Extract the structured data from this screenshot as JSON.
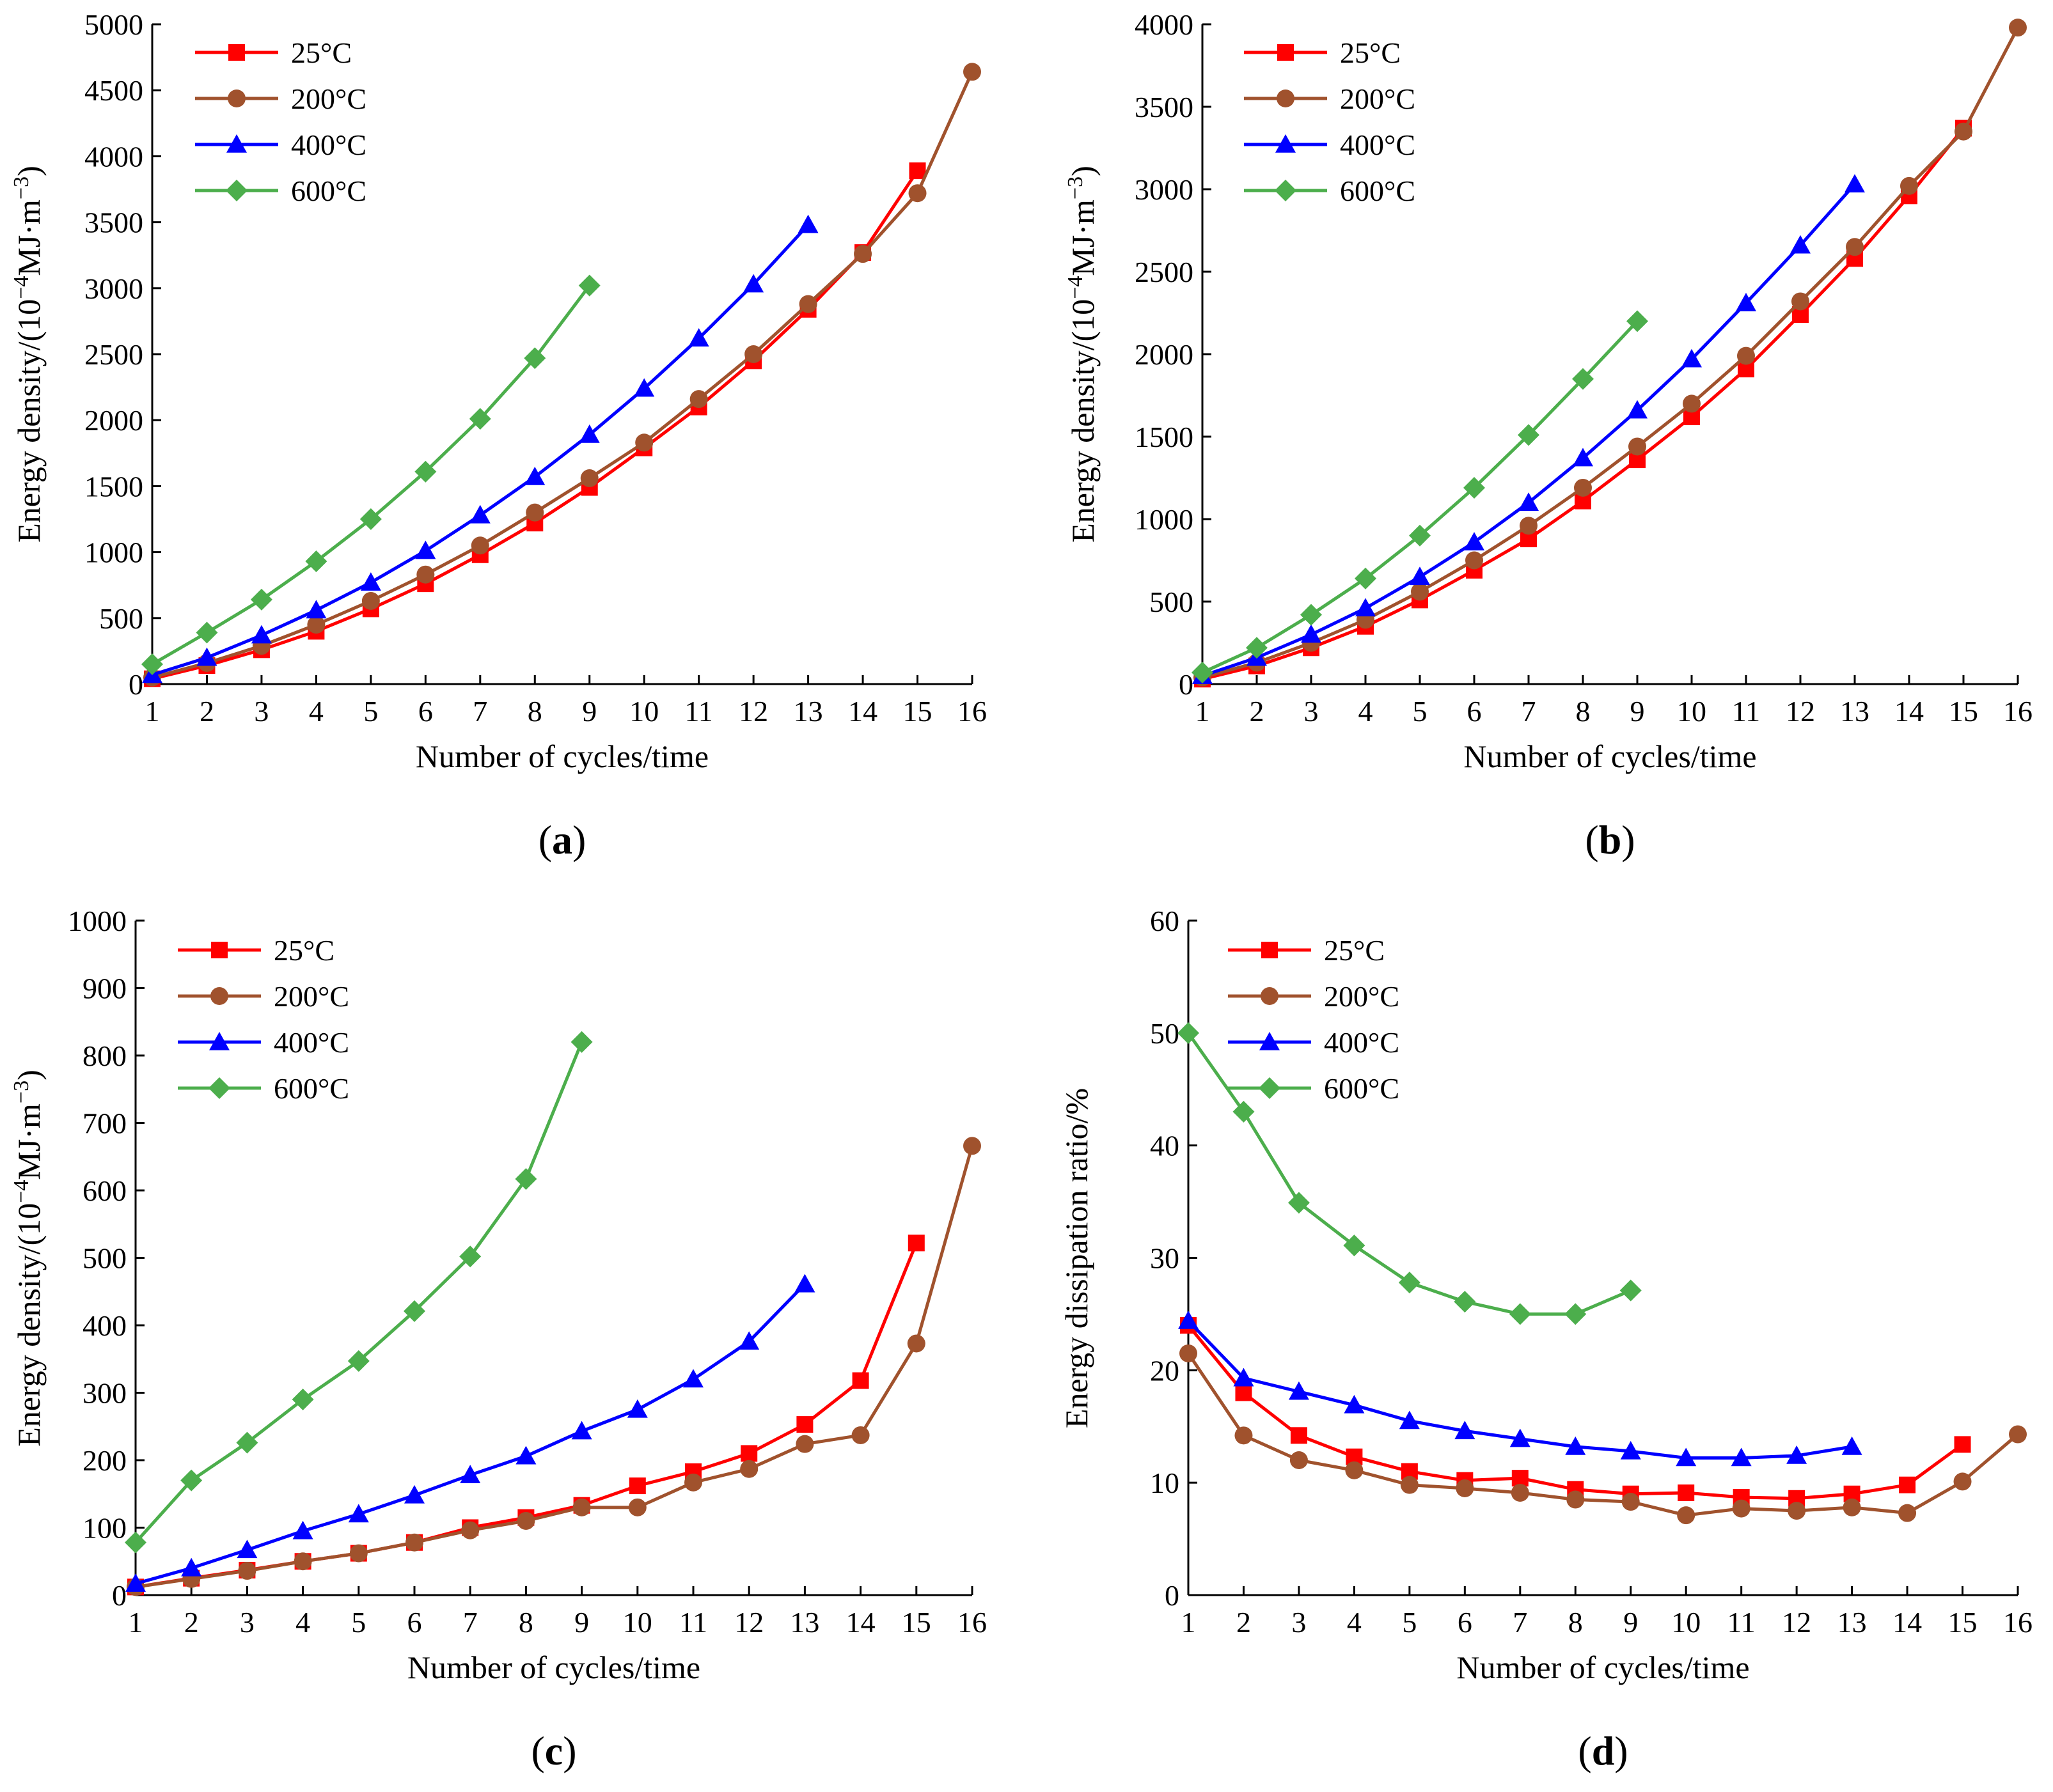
{
  "chart_data": [
    {
      "id": "a",
      "type": "line",
      "panel_label": "a",
      "xlabel": "Number of cycles/time",
      "ylabel_main": "Energy density/(10",
      "ylabel_exp1": "−4",
      "ylabel_mid": "MJ·m",
      "ylabel_exp2": "−3",
      "ylabel_end": ")",
      "xlim": [
        1,
        16
      ],
      "ylim": [
        0,
        5000
      ],
      "x_ticks": [
        1,
        2,
        3,
        4,
        5,
        6,
        7,
        8,
        9,
        10,
        11,
        12,
        13,
        14,
        15,
        16
      ],
      "y_ticks": [
        0,
        500,
        1000,
        1500,
        2000,
        2500,
        3000,
        3500,
        4000,
        4500,
        5000
      ],
      "legend_position": "top-left",
      "series": [
        {
          "name": "25°C",
          "color": "#ff0000",
          "marker": "square",
          "x": [
            1,
            2,
            3,
            4,
            5,
            6,
            7,
            8,
            9,
            10,
            11,
            12,
            13,
            14,
            15
          ],
          "values": [
            40,
            140,
            260,
            400,
            570,
            760,
            980,
            1220,
            1490,
            1790,
            2100,
            2450,
            2840,
            3270,
            3890
          ]
        },
        {
          "name": "200°C",
          "color": "#a0522d",
          "marker": "circle",
          "x": [
            1,
            2,
            3,
            4,
            5,
            6,
            7,
            8,
            9,
            10,
            11,
            12,
            13,
            14,
            15,
            16
          ],
          "values": [
            50,
            160,
            290,
            450,
            630,
            830,
            1050,
            1300,
            1560,
            1830,
            2160,
            2500,
            2880,
            3260,
            3720,
            4640
          ]
        },
        {
          "name": "400°C",
          "color": "#0000ff",
          "marker": "triangle",
          "x": [
            1,
            2,
            3,
            4,
            5,
            6,
            7,
            8,
            9,
            10,
            11,
            12,
            13
          ],
          "values": [
            70,
            200,
            370,
            560,
            770,
            1010,
            1280,
            1570,
            1890,
            2240,
            2620,
            3030,
            3480
          ]
        },
        {
          "name": "600°C",
          "color": "#4cae4c",
          "marker": "diamond",
          "x": [
            1,
            2,
            3,
            4,
            5,
            6,
            7,
            8,
            9
          ],
          "values": [
            150,
            390,
            640,
            930,
            1250,
            1610,
            2010,
            2470,
            3020
          ]
        }
      ]
    },
    {
      "id": "b",
      "type": "line",
      "panel_label": "b",
      "xlabel": "Number of cycles/time",
      "ylabel_main": "Energy density/(10",
      "ylabel_exp1": "−4",
      "ylabel_mid": "MJ·m",
      "ylabel_exp2": "−3",
      "ylabel_end": ")",
      "xlim": [
        1,
        16
      ],
      "ylim": [
        0,
        4000
      ],
      "x_ticks": [
        1,
        2,
        3,
        4,
        5,
        6,
        7,
        8,
        9,
        10,
        11,
        12,
        13,
        14,
        15,
        16
      ],
      "y_ticks": [
        0,
        500,
        1000,
        1500,
        2000,
        2500,
        3000,
        3500,
        4000
      ],
      "legend_position": "top-left",
      "series": [
        {
          "name": "25°C",
          "color": "#ff0000",
          "marker": "square",
          "x": [
            1,
            2,
            3,
            4,
            5,
            6,
            7,
            8,
            9,
            10,
            11,
            12,
            13,
            14,
            15
          ],
          "values": [
            30,
            110,
            220,
            350,
            510,
            690,
            880,
            1110,
            1360,
            1620,
            1910,
            2240,
            2580,
            2960,
            3370
          ]
        },
        {
          "name": "200°C",
          "color": "#a0522d",
          "marker": "circle",
          "x": [
            1,
            2,
            3,
            4,
            5,
            6,
            7,
            8,
            9,
            10,
            11,
            12,
            13,
            14,
            15,
            16
          ],
          "values": [
            40,
            130,
            250,
            390,
            560,
            750,
            960,
            1190,
            1440,
            1700,
            1990,
            2320,
            2650,
            3020,
            3350,
            3980
          ]
        },
        {
          "name": "400°C",
          "color": "#0000ff",
          "marker": "triangle",
          "x": [
            1,
            2,
            3,
            4,
            5,
            6,
            7,
            8,
            9,
            10,
            11,
            12,
            13
          ],
          "values": [
            50,
            160,
            300,
            460,
            650,
            860,
            1100,
            1370,
            1660,
            1970,
            2310,
            2660,
            3030
          ]
        },
        {
          "name": "600°C",
          "color": "#4cae4c",
          "marker": "diamond",
          "x": [
            1,
            2,
            3,
            4,
            5,
            6,
            7,
            8,
            9
          ],
          "values": [
            70,
            220,
            420,
            640,
            900,
            1190,
            1510,
            1850,
            2200
          ]
        }
      ]
    },
    {
      "id": "c",
      "type": "line",
      "panel_label": "c",
      "xlabel": "Number of cycles/time",
      "ylabel_main": "Energy density/(10",
      "ylabel_exp1": "−4",
      "ylabel_mid": "MJ·m",
      "ylabel_exp2": "−3",
      "ylabel_end": ")",
      "xlim": [
        1,
        16
      ],
      "ylim": [
        0,
        1000
      ],
      "x_ticks": [
        1,
        2,
        3,
        4,
        5,
        6,
        7,
        8,
        9,
        10,
        11,
        12,
        13,
        14,
        15,
        16
      ],
      "y_ticks": [
        0,
        100,
        200,
        300,
        400,
        500,
        600,
        700,
        800,
        900,
        1000
      ],
      "legend_position": "top-left",
      "series": [
        {
          "name": "25°C",
          "color": "#ff0000",
          "marker": "square",
          "x": [
            1,
            2,
            3,
            4,
            5,
            6,
            7,
            8,
            9,
            10,
            11,
            12,
            13,
            14,
            15
          ],
          "values": [
            12,
            25,
            37,
            50,
            62,
            78,
            100,
            115,
            133,
            162,
            183,
            210,
            253,
            318,
            522
          ]
        },
        {
          "name": "200°C",
          "color": "#a0522d",
          "marker": "circle",
          "x": [
            1,
            2,
            3,
            4,
            5,
            6,
            7,
            8,
            9,
            10,
            11,
            12,
            13,
            14,
            15,
            16
          ],
          "values": [
            12,
            24,
            36,
            50,
            62,
            78,
            96,
            110,
            130,
            130,
            167,
            187,
            224,
            237,
            373,
            666
          ]
        },
        {
          "name": "400°C",
          "color": "#0000ff",
          "marker": "triangle",
          "x": [
            1,
            2,
            3,
            4,
            5,
            6,
            7,
            8,
            9,
            10,
            11,
            12,
            13
          ],
          "values": [
            17,
            40,
            67,
            95,
            120,
            148,
            178,
            206,
            243,
            275,
            320,
            376,
            461
          ]
        },
        {
          "name": "600°C",
          "color": "#4cae4c",
          "marker": "diamond",
          "x": [
            1,
            2,
            3,
            4,
            5,
            6,
            7,
            8,
            9
          ],
          "values": [
            78,
            170,
            226,
            290,
            347,
            421,
            502,
            617,
            820
          ]
        }
      ]
    },
    {
      "id": "d",
      "type": "line",
      "panel_label": "d",
      "xlabel": "Number of cycles/time",
      "ylabel_main": "Energy dissipation ratio/%",
      "xlim": [
        1,
        16
      ],
      "ylim": [
        0,
        60
      ],
      "x_ticks": [
        1,
        2,
        3,
        4,
        5,
        6,
        7,
        8,
        9,
        10,
        11,
        12,
        13,
        14,
        15,
        16
      ],
      "y_ticks": [
        0,
        10,
        20,
        30,
        40,
        50,
        60
      ],
      "legend_position": "top-left",
      "series": [
        {
          "name": "25°C",
          "color": "#ff0000",
          "marker": "square",
          "x": [
            1,
            2,
            3,
            4,
            5,
            6,
            7,
            8,
            9,
            10,
            11,
            12,
            13,
            14,
            15
          ],
          "values": [
            24,
            18,
            14.2,
            12.3,
            11,
            10.2,
            10.4,
            9.4,
            9,
            9.1,
            8.7,
            8.6,
            9,
            9.8,
            13.4
          ]
        },
        {
          "name": "200°C",
          "color": "#a0522d",
          "marker": "circle",
          "x": [
            1,
            2,
            3,
            4,
            5,
            6,
            7,
            8,
            9,
            10,
            11,
            12,
            13,
            14,
            15,
            16
          ],
          "values": [
            21.5,
            14.2,
            12,
            11.1,
            9.8,
            9.5,
            9.1,
            8.5,
            8.3,
            7.1,
            7.7,
            7.5,
            7.8,
            7.3,
            10.1,
            14.3
          ]
        },
        {
          "name": "400°C",
          "color": "#0000ff",
          "marker": "triangle",
          "x": [
            1,
            2,
            3,
            4,
            5,
            6,
            7,
            8,
            9,
            10,
            11,
            12,
            13
          ],
          "values": [
            24.4,
            19.3,
            18.1,
            16.9,
            15.5,
            14.6,
            13.9,
            13.2,
            12.8,
            12.2,
            12.2,
            12.4,
            13.2
          ]
        },
        {
          "name": "600°C",
          "color": "#4cae4c",
          "marker": "diamond",
          "x": [
            1,
            2,
            3,
            4,
            5,
            6,
            7,
            8,
            9
          ],
          "values": [
            50,
            43,
            34.9,
            31.1,
            27.8,
            26.1,
            25,
            25,
            27.1
          ]
        }
      ]
    }
  ]
}
